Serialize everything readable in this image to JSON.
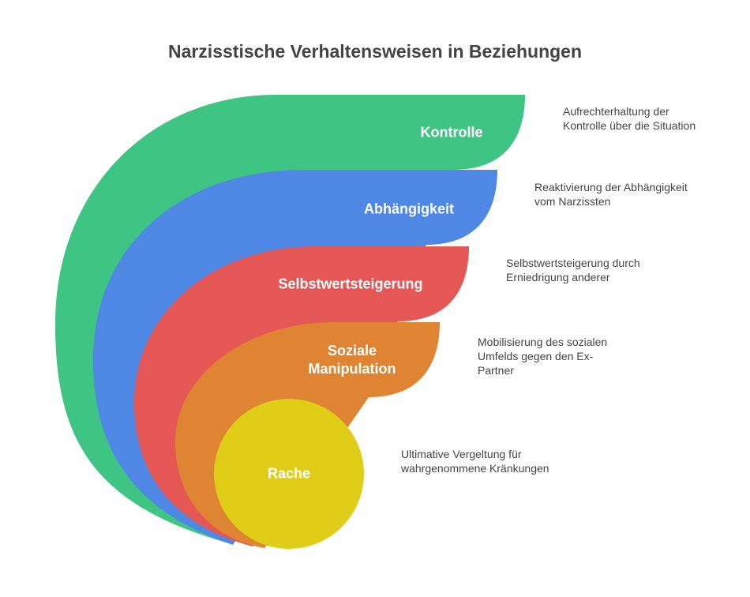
{
  "title": "Narzisstische Verhaltensweisen in Beziehungen",
  "items": [
    {
      "label": "Kontrolle",
      "description": "Aufrechterhaltung der Kontrolle über die Situation"
    },
    {
      "label": "Abhängigkeit",
      "description": "Reaktivierung der Abhängigkeit vom Narzissten"
    },
    {
      "label": "Selbstwertsteigerung",
      "description": "Selbstwertsteigerung durch Erniedrigung anderer"
    },
    {
      "label": "Soziale Manipulation",
      "description": "Mobilisierung des sozialen Umfelds gegen den Ex-Partner"
    },
    {
      "label": "Rache",
      "description": "Ultimative Vergeltung für wahrgenommene Kränkungen"
    }
  ]
}
